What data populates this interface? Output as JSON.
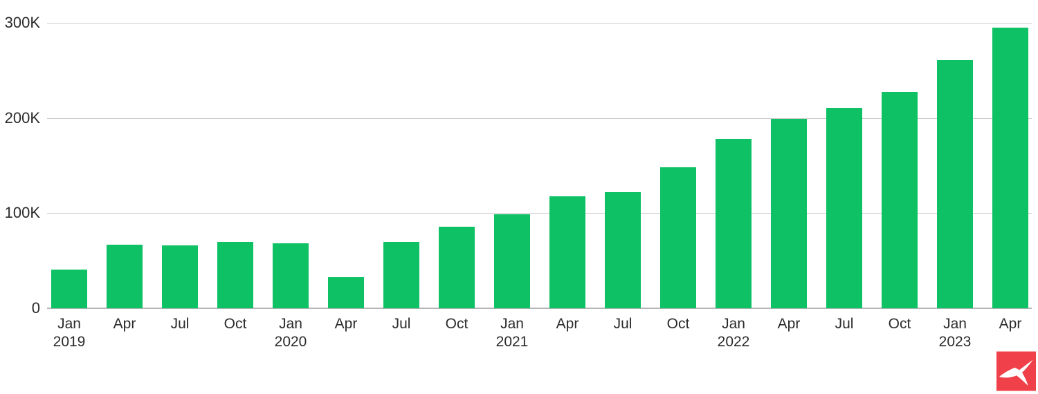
{
  "chart_data": {
    "type": "bar",
    "title": "",
    "xlabel": "",
    "ylabel": "",
    "legend": "none",
    "grid": true,
    "ylim": [
      0,
      300000
    ],
    "bar_color": "#0dc164",
    "gridline_color": "#cbcbcb",
    "baseline_color": "#b5b5b5",
    "axis_text_color": "#2a2a2a",
    "y_ticks": [
      {
        "label": "300K",
        "value": 300000
      },
      {
        "label": "200K",
        "value": 200000
      },
      {
        "label": "100K",
        "value": 100000
      },
      {
        "label": "0",
        "value": 0
      }
    ],
    "categories": [
      {
        "month": "Jan",
        "year": "2019"
      },
      {
        "month": "Apr",
        "year": ""
      },
      {
        "month": "Jul",
        "year": ""
      },
      {
        "month": "Oct",
        "year": ""
      },
      {
        "month": "Jan",
        "year": "2020"
      },
      {
        "month": "Apr",
        "year": ""
      },
      {
        "month": "Jul",
        "year": ""
      },
      {
        "month": "Oct",
        "year": ""
      },
      {
        "month": "Jan",
        "year": "2021"
      },
      {
        "month": "Apr",
        "year": ""
      },
      {
        "month": "Jul",
        "year": ""
      },
      {
        "month": "Oct",
        "year": ""
      },
      {
        "month": "Jan",
        "year": "2022"
      },
      {
        "month": "Apr",
        "year": ""
      },
      {
        "month": "Jul",
        "year": ""
      },
      {
        "month": "Oct",
        "year": ""
      },
      {
        "month": "Jan",
        "year": "2023"
      },
      {
        "month": "Apr",
        "year": ""
      }
    ],
    "values": [
      41000,
      67000,
      66000,
      70000,
      68000,
      33000,
      70000,
      86000,
      99000,
      118000,
      122000,
      148000,
      178000,
      199000,
      211000,
      227000,
      261000,
      295000
    ]
  },
  "branding": {
    "logo_name": "x-logo",
    "logo_bg": "#f0404a",
    "logo_fg": "#ffffff"
  }
}
